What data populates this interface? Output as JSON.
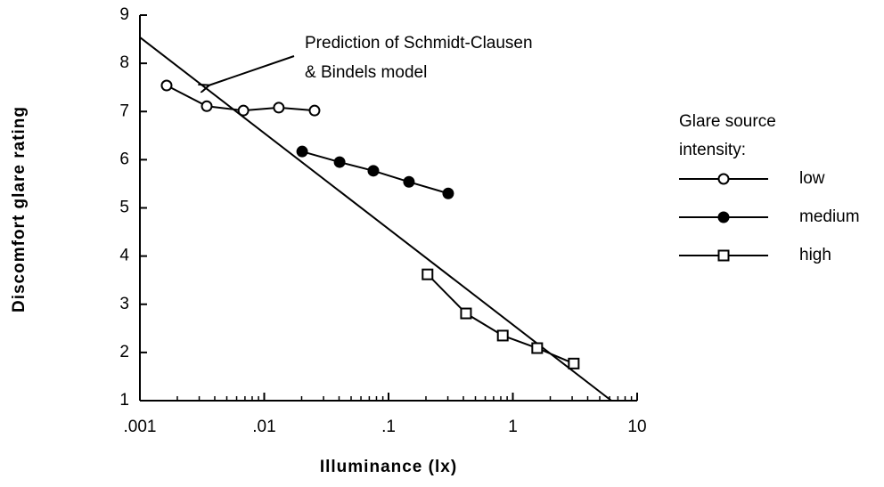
{
  "chart_data": {
    "type": "line",
    "xlabel": "Illuminance  (lx)",
    "ylabel": "Discomfort  glare  rating",
    "xscale": "log",
    "xlim": [
      0.001,
      10
    ],
    "ylim": [
      1,
      9
    ],
    "xticks": [
      {
        "value": 0.001,
        "label": ".001"
      },
      {
        "value": 0.01,
        "label": ".01"
      },
      {
        "value": 0.1,
        "label": ".1"
      },
      1,
      10
    ],
    "yticks": [
      1,
      2,
      3,
      4,
      5,
      6,
      7,
      8,
      9
    ],
    "legend_title": [
      "Glare source",
      "intensity:"
    ],
    "legend": "right",
    "series": [
      {
        "name": "low",
        "color": "#000000",
        "marker": "open-circle",
        "x": [
          0.00164,
          0.00345,
          0.0068,
          0.0131,
          0.0254
        ],
        "values": [
          7.54,
          7.11,
          7.02,
          7.08,
          7.02
        ]
      },
      {
        "name": "medium",
        "color": "#000000",
        "marker": "filled-circle",
        "x": [
          0.0202,
          0.0404,
          0.0755,
          0.146,
          0.302
        ],
        "values": [
          6.17,
          5.95,
          5.77,
          5.54,
          5.3
        ]
      },
      {
        "name": "high",
        "color": "#000000",
        "marker": "open-square",
        "x": [
          0.206,
          0.42,
          0.83,
          1.57,
          3.09
        ],
        "values": [
          3.62,
          2.81,
          2.35,
          2.09,
          1.77
        ]
      }
    ],
    "prediction": {
      "annotation": [
        "Prediction of Schmidt-Clausen",
        "& Bindels model"
      ],
      "x": [
        0.001,
        6.2
      ],
      "values": [
        8.54,
        1
      ]
    }
  }
}
